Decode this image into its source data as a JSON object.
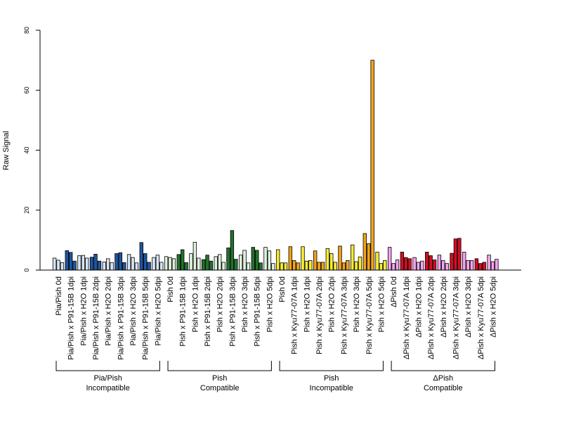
{
  "chart_data": {
    "type": "bar",
    "ylabel": "Raw Signal",
    "ylim": [
      0,
      80
    ],
    "yticks": [
      0,
      20,
      40,
      60,
      80
    ],
    "grid": false,
    "groups": [
      {
        "name": "Pia/Pish",
        "subname": "Incompatible"
      },
      {
        "name": "Pish",
        "subname": "Compatible"
      },
      {
        "name": "Pish",
        "subname": "Incompatible"
      },
      {
        "name": "ΔPish",
        "subname": "Compatible"
      }
    ],
    "categories": [
      {
        "label": "Pia/Pish 0d",
        "group": 0,
        "dark": "#1f56a0",
        "light": "#d8e4f2",
        "pattern": "LLL",
        "values": [
          4.0,
          3.3,
          2.5
        ]
      },
      {
        "label": "Pia/Pish x P91-15B 1dpi",
        "group": 0,
        "dark": "#1f56a0",
        "light": "#d8e4f2",
        "pattern": "DDD",
        "values": [
          6.5,
          5.9,
          3.0
        ]
      },
      {
        "label": "Pia/Pish x H2O 1dpi",
        "group": 0,
        "dark": "#1f56a0",
        "light": "#d8e4f2",
        "pattern": "LLL",
        "values": [
          4.8,
          4.9,
          4.0
        ]
      },
      {
        "label": "Pia/Pish x P91-15B 2dpi",
        "group": 0,
        "dark": "#1f56a0",
        "light": "#d8e4f2",
        "pattern": "DDD",
        "values": [
          4.3,
          5.3,
          3.0
        ]
      },
      {
        "label": "Pia/Pish x H2O 2dpi",
        "group": 0,
        "dark": "#1f56a0",
        "light": "#d8e4f2",
        "pattern": "LLL",
        "values": [
          2.7,
          3.8,
          2.5
        ]
      },
      {
        "label": "Pia/Pish x P91-15B 3dpi",
        "group": 0,
        "dark": "#1f56a0",
        "light": "#d8e4f2",
        "pattern": "DDD",
        "values": [
          5.5,
          5.8,
          2.5
        ]
      },
      {
        "label": "Pia/Pish x H2O 3dpi",
        "group": 0,
        "dark": "#1f56a0",
        "light": "#d8e4f2",
        "pattern": "LLL",
        "values": [
          5.2,
          4.2,
          2.4
        ]
      },
      {
        "label": "Pia/Pish x P91-15B 5dpi",
        "group": 0,
        "dark": "#1f56a0",
        "light": "#d8e4f2",
        "pattern": "DDD",
        "values": [
          9.2,
          5.5,
          2.6
        ]
      },
      {
        "label": "Pia/Pish x H2O 5dpi",
        "group": 0,
        "dark": "#1f56a0",
        "light": "#d8e4f2",
        "pattern": "LLL",
        "values": [
          4.2,
          5.0,
          2.6
        ]
      },
      {
        "label": "Pish 0d",
        "group": 1,
        "dark": "#23722e",
        "light": "#dff0dc",
        "pattern": "LLL",
        "values": [
          4.5,
          4.2,
          3.8
        ]
      },
      {
        "label": "Pish x P91-15B 1dpi",
        "group": 1,
        "dark": "#23722e",
        "light": "#dff0dc",
        "pattern": "DDD",
        "values": [
          5.2,
          6.8,
          2.5
        ]
      },
      {
        "label": "Pish x H2O 1dpi",
        "group": 1,
        "dark": "#23722e",
        "light": "#dff0dc",
        "pattern": "LLL",
        "values": [
          5.5,
          9.3,
          4.0
        ]
      },
      {
        "label": "Pish x P91-15B 2dpi",
        "group": 1,
        "dark": "#23722e",
        "light": "#dff0dc",
        "pattern": "DDD",
        "values": [
          3.5,
          5.0,
          3.0
        ]
      },
      {
        "label": "Pish x H2O 2dpi",
        "group": 1,
        "dark": "#23722e",
        "light": "#dff0dc",
        "pattern": "LLL",
        "values": [
          4.5,
          5.2,
          2.6
        ]
      },
      {
        "label": "Pish x P91-15B 3dpi",
        "group": 1,
        "dark": "#23722e",
        "light": "#dff0dc",
        "pattern": "DDD",
        "values": [
          7.4,
          13.2,
          3.6
        ]
      },
      {
        "label": "Pish x H2O 3dpi",
        "group": 1,
        "dark": "#23722e",
        "light": "#dff0dc",
        "pattern": "LLL",
        "values": [
          5.0,
          6.6,
          2.4
        ]
      },
      {
        "label": "Pish x P91-15B 5dpi",
        "group": 1,
        "dark": "#23722e",
        "light": "#dff0dc",
        "pattern": "DDD",
        "values": [
          7.6,
          6.6,
          2.4
        ]
      },
      {
        "label": "Pish x H2O 5dpi",
        "group": 1,
        "dark": "#23722e",
        "light": "#dff0dc",
        "pattern": "LLL",
        "values": [
          7.6,
          6.4,
          2.2
        ]
      },
      {
        "label": "Pish 0d",
        "group": 2,
        "dark": "#f2a31b",
        "light": "#f8ec34",
        "pattern": "LLL",
        "values": [
          6.8,
          2.4,
          2.4
        ]
      },
      {
        "label": "Pish x Kyu77-07A 1dpi",
        "group": 2,
        "dark": "#f2a31b",
        "light": "#f8ec34",
        "pattern": "DDD",
        "values": [
          7.8,
          3.2,
          2.4
        ]
      },
      {
        "label": "Pish x H2O 1dpi",
        "group": 2,
        "dark": "#f2a31b",
        "light": "#f8ec34",
        "pattern": "LLL",
        "values": [
          7.8,
          3.0,
          3.2
        ]
      },
      {
        "label": "Pish x Kyu77-07A 2dpi",
        "group": 2,
        "dark": "#f2a31b",
        "light": "#f8ec34",
        "pattern": "DDD",
        "values": [
          6.4,
          2.6,
          2.6
        ]
      },
      {
        "label": "Pish x H2O 2dpi",
        "group": 2,
        "dark": "#f2a31b",
        "light": "#f8ec34",
        "pattern": "LLL",
        "values": [
          7.2,
          5.5,
          2.6
        ]
      },
      {
        "label": "Pish x Kyu77-07A 3dpi",
        "group": 2,
        "dark": "#f2a31b",
        "light": "#f8ec34",
        "pattern": "DDD",
        "values": [
          8.0,
          2.4,
          3.2
        ]
      },
      {
        "label": "Pish x H2O 3dpi",
        "group": 2,
        "dark": "#f2a31b",
        "light": "#f8ec34",
        "pattern": "LLL",
        "values": [
          8.4,
          2.8,
          4.4
        ]
      },
      {
        "label": "Pish x Kyu77-07A 5dpi",
        "group": 2,
        "dark": "#f2a31b",
        "light": "#f8ec34",
        "pattern": "DDD",
        "values": [
          12.2,
          8.8,
          70.0
        ]
      },
      {
        "label": "Pish x H2O 5dpi",
        "group": 2,
        "dark": "#f2a31b",
        "light": "#f8ec34",
        "pattern": "LLL",
        "values": [
          6.0,
          2.2,
          3.2
        ]
      },
      {
        "label": "ΔPish 0d",
        "group": 3,
        "dark": "#d40d24",
        "light": "#f4a3ee",
        "pattern": "LLL",
        "values": [
          7.6,
          2.2,
          3.4
        ]
      },
      {
        "label": "ΔPish x Kyu77-07A 1dpi",
        "group": 3,
        "dark": "#d40d24",
        "light": "#f4a3ee",
        "pattern": "DDD",
        "values": [
          6.0,
          4.2,
          3.8
        ]
      },
      {
        "label": "ΔPish x H2O 1dpi",
        "group": 3,
        "dark": "#d40d24",
        "light": "#f4a3ee",
        "pattern": "LLL",
        "values": [
          4.2,
          2.6,
          3.0
        ]
      },
      {
        "label": "ΔPish x Kyu77-07A 2dpi",
        "group": 3,
        "dark": "#d40d24",
        "light": "#f4a3ee",
        "pattern": "DDD",
        "values": [
          6.0,
          4.8,
          3.4
        ]
      },
      {
        "label": "ΔPish x H2O 2dpi",
        "group": 3,
        "dark": "#d40d24",
        "light": "#f4a3ee",
        "pattern": "LLL",
        "values": [
          5.0,
          3.2,
          2.2
        ]
      },
      {
        "label": "ΔPish x Kyu77-07A 3dpi",
        "group": 3,
        "dark": "#d40d24",
        "light": "#f4a3ee",
        "pattern": "DDD",
        "values": [
          5.6,
          10.4,
          10.6
        ]
      },
      {
        "label": "ΔPish x H2O 3dpi",
        "group": 3,
        "dark": "#d40d24",
        "light": "#f4a3ee",
        "pattern": "LLL",
        "values": [
          6.0,
          3.2,
          3.2
        ]
      },
      {
        "label": "ΔPish x Kyu77-07A 5dpi",
        "group": 3,
        "dark": "#d40d24",
        "light": "#f4a3ee",
        "pattern": "DDD",
        "values": [
          3.8,
          2.2,
          2.6
        ]
      },
      {
        "label": "ΔPish x H2O 5dpi",
        "group": 3,
        "dark": "#d40d24",
        "light": "#f4a3ee",
        "pattern": "LLL",
        "values": [
          5.0,
          2.8,
          3.6
        ]
      }
    ]
  }
}
